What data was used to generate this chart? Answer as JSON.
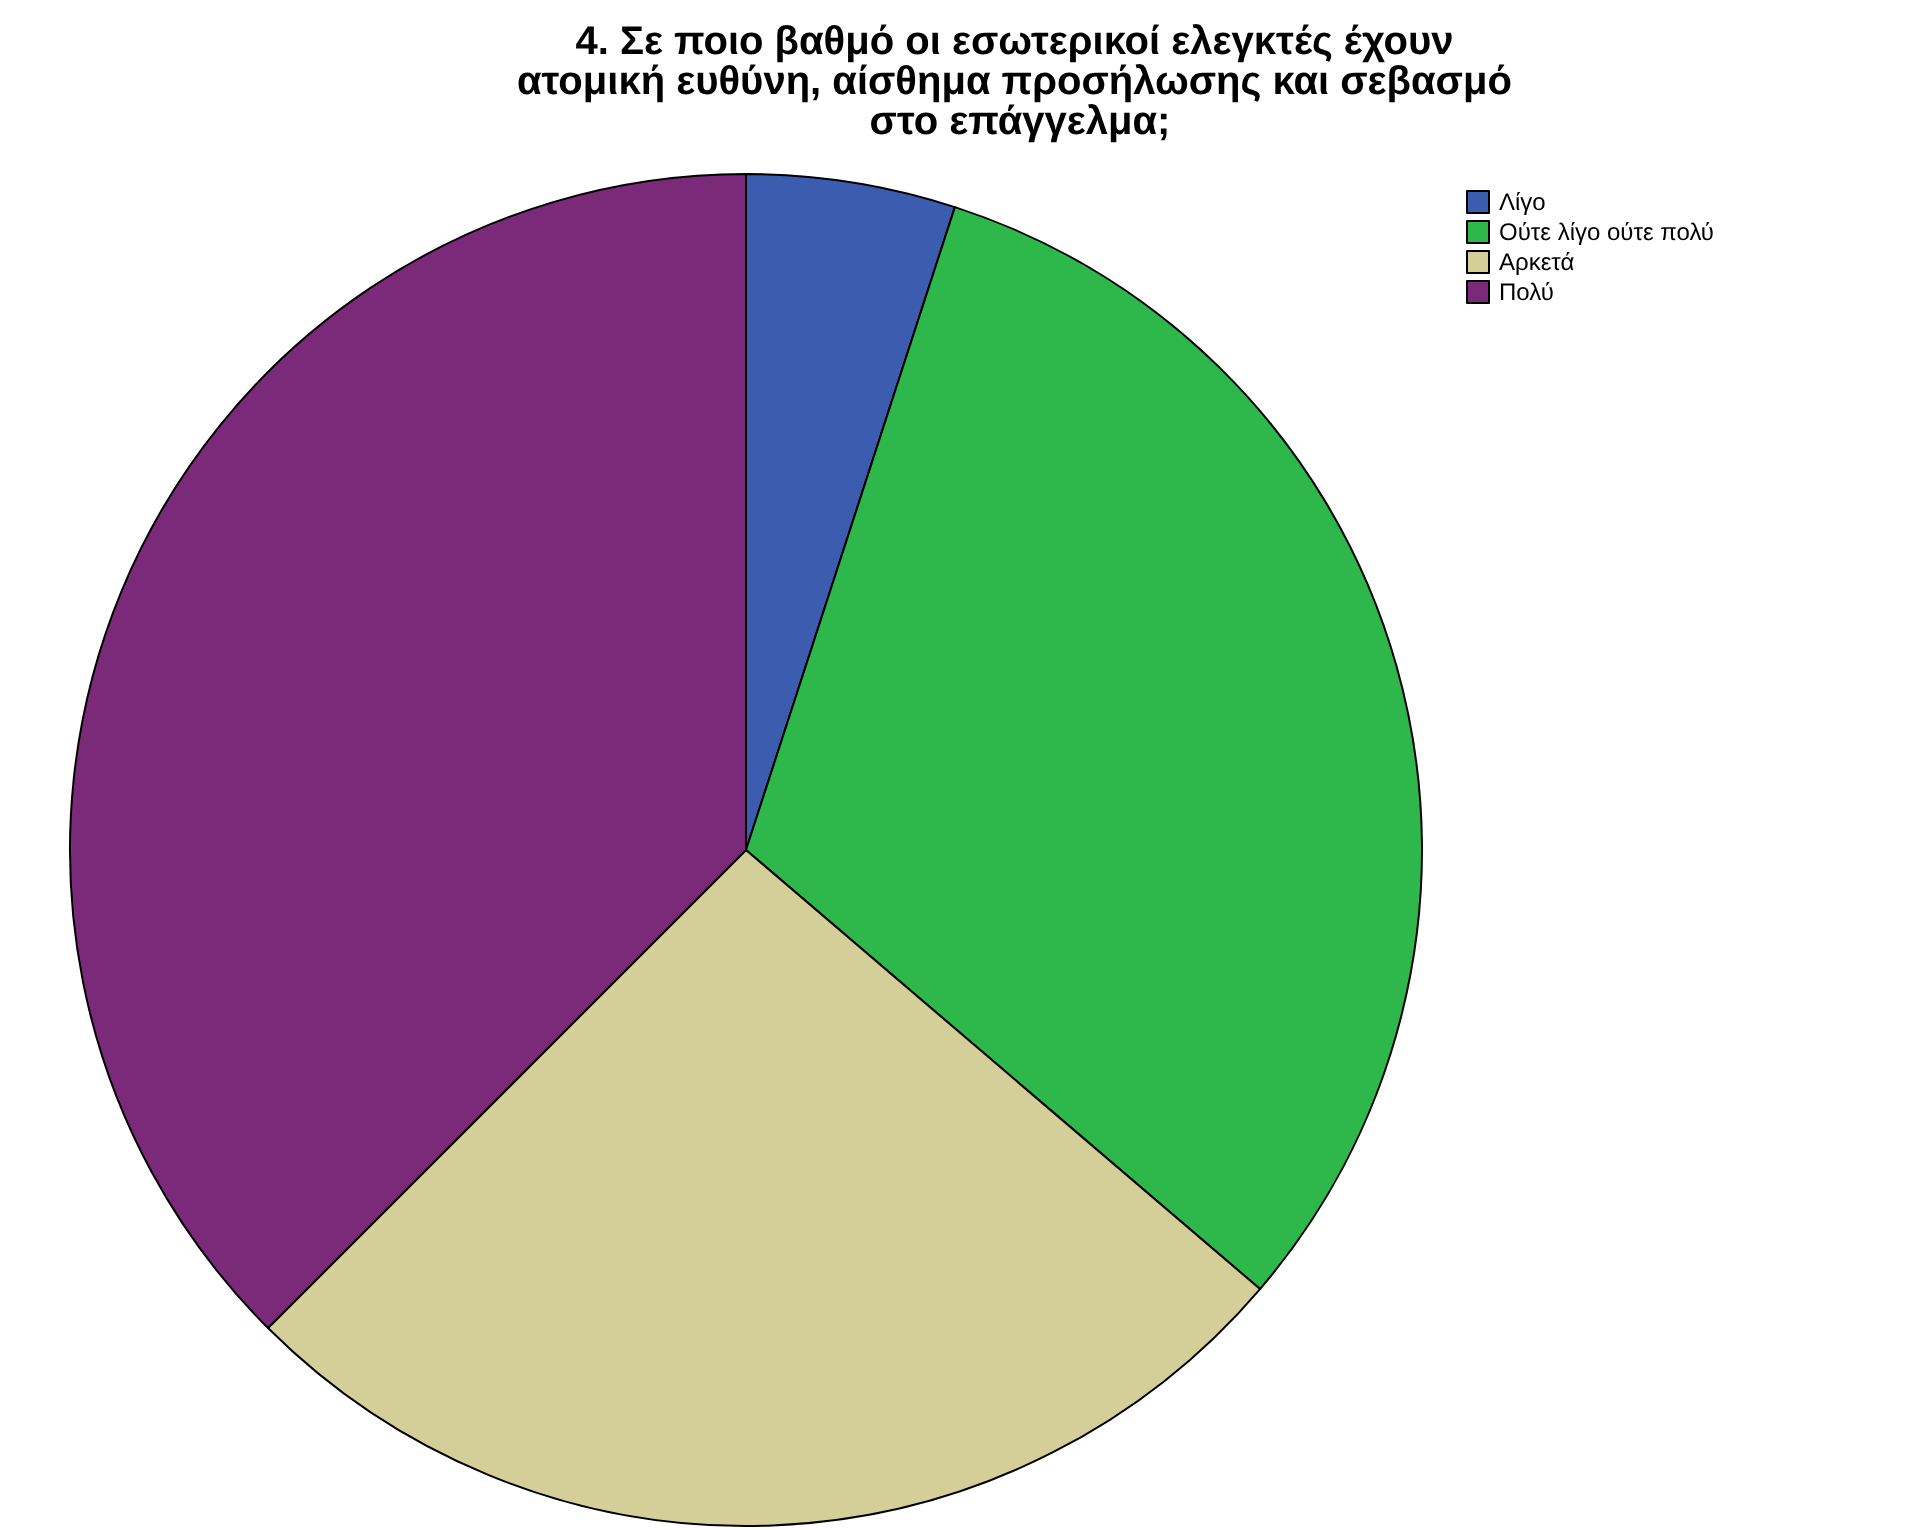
{
  "chart_data": {
    "type": "pie",
    "title": "4. Σε ποιο βαθμό οι εσωτερικοί ελεγκτές έχουν ατομική ευθύνη, αίσθημα προσήλωσης και σεβασμό στο επάγγελμα;",
    "categories": [
      "Λίγο",
      "Ούτε λίγο ούτε πολύ",
      "Αρκετά",
      "Πολύ"
    ],
    "values": [
      5,
      31.25,
      26.25,
      37.5
    ],
    "colors": [
      "#3c5cb0",
      "#2eb84b",
      "#d4cf98",
      "#7b2a7a"
    ],
    "legend": "top right"
  }
}
